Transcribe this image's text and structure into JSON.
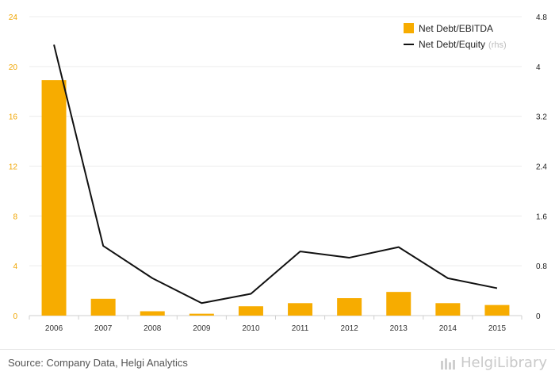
{
  "chart_data": {
    "type": "bar",
    "categories": [
      "2006",
      "2007",
      "2008",
      "2009",
      "2010",
      "2011",
      "2012",
      "2013",
      "2014",
      "2015"
    ],
    "series": [
      {
        "name": "Net Debt/EBITDA",
        "type": "bar",
        "axis": "left",
        "color": "#f7ac00",
        "values": [
          18.9,
          1.35,
          0.35,
          0.15,
          0.75,
          1.0,
          1.4,
          1.9,
          1.0,
          0.85
        ]
      },
      {
        "name": "Net Debt/Equity",
        "legend_suffix": "(rhs)",
        "type": "line",
        "axis": "right",
        "color": "#111111",
        "values": [
          4.35,
          1.12,
          0.6,
          0.2,
          0.35,
          1.03,
          0.93,
          1.1,
          0.6,
          0.44
        ]
      }
    ],
    "y_left": {
      "ylim": [
        0,
        24
      ],
      "ticks": [
        "0",
        "4",
        "8",
        "12",
        "16",
        "20",
        "24"
      ],
      "color": "#f0a500"
    },
    "y_right": {
      "ylim": [
        0,
        4.8
      ],
      "ticks": [
        "0",
        "0.8",
        "1.6",
        "2.4",
        "3.2",
        "4",
        "4.8"
      ]
    },
    "grid": true,
    "legend_position": "top-right"
  },
  "footer": {
    "source": "Source: Company Data, Helgi Analytics",
    "brand": "HelgiLibrary"
  }
}
